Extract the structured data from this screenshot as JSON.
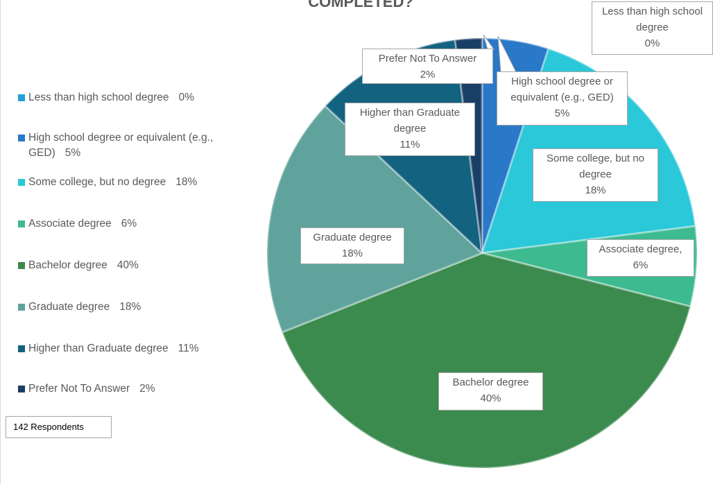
{
  "chart_data": {
    "type": "pie",
    "title": "COMPLETED?",
    "categories": [
      "Less than high school degree",
      "High school degree or equivalent (e.g., GED)",
      "Some college, but no degree",
      "Associate degree",
      "Bachelor degree",
      "Graduate degree",
      "Higher than Graduate degree",
      "Prefer Not To Answer"
    ],
    "label_names": [
      "Less than high school degree",
      "High school degree or equivalent (e.g., GED)",
      "Some college, but no degree",
      "Associate degree,",
      "Bachelor degree",
      "Graduate degree",
      "Higher than Graduate degree",
      "Prefer Not To Answer"
    ],
    "values": [
      0,
      5,
      18,
      6,
      40,
      18,
      11,
      2
    ],
    "value_labels": [
      "0%",
      "5%",
      "18%",
      "6%",
      "40%",
      "18%",
      "11%",
      "2%"
    ],
    "colors": [
      "#1fa3d8",
      "#2a78c8",
      "#2ac8d8",
      "#3dba90",
      "#3b8a4e",
      "#5fa39c",
      "#13627f",
      "#1a3f66"
    ],
    "legend": "left",
    "annotation": "142 Respondents"
  }
}
